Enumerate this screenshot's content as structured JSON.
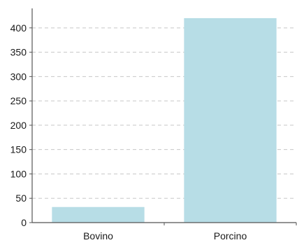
{
  "chart_data": {
    "type": "bar",
    "categories": [
      "Bovino",
      "Porcino"
    ],
    "values": [
      32,
      420
    ],
    "title": "",
    "xlabel": "",
    "ylabel": "",
    "ylim": [
      0,
      440
    ],
    "yticks": [
      0,
      50,
      100,
      150,
      200,
      250,
      300,
      350,
      400
    ],
    "grid": "horizontal-dashed",
    "legend": "none",
    "colors": {
      "bar": "#b7dde6",
      "axis": "#555555",
      "grid": "#c8c8c8",
      "text": "#1a1a1a"
    }
  }
}
